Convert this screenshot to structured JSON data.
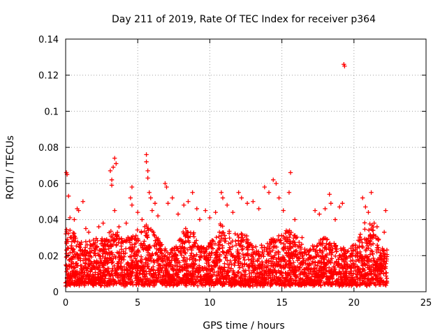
{
  "chart_data": {
    "type": "scatter",
    "title": "Day 211 of 2019, Rate Of TEC Index for receiver p364",
    "xlabel": "GPS time / hours",
    "ylabel": "ROTI / TECUs",
    "xlim": [
      0,
      25
    ],
    "ylim": [
      0,
      0.14
    ],
    "xticks": [
      0,
      5,
      10,
      15,
      20,
      25
    ],
    "xtick_labels": [
      "0",
      "5",
      "10",
      "15",
      "20",
      "25"
    ],
    "yticks": [
      0,
      0.02,
      0.04,
      0.06,
      0.08,
      0.1,
      0.12,
      0.14
    ],
    "ytick_labels": [
      "0",
      "0.02",
      "0.04",
      "0.06",
      "0.08",
      "0.1",
      "0.12",
      "0.14"
    ],
    "grid": true,
    "marker": "+",
    "color": "#ff0000",
    "dense_band": {
      "x_range": [
        0,
        22.3
      ],
      "typical_y_range": [
        0.004,
        0.03
      ]
    },
    "points": [
      [
        0.05,
        0.066
      ],
      [
        0.1,
        0.065
      ],
      [
        0.2,
        0.053
      ],
      [
        0.3,
        0.041
      ],
      [
        0.6,
        0.04
      ],
      [
        0.8,
        0.046
      ],
      [
        0.9,
        0.045
      ],
      [
        1.2,
        0.05
      ],
      [
        1.4,
        0.035
      ],
      [
        1.6,
        0.033
      ],
      [
        2.3,
        0.036
      ],
      [
        2.6,
        0.038
      ],
      [
        3.1,
        0.067
      ],
      [
        3.2,
        0.062
      ],
      [
        3.2,
        0.059
      ],
      [
        3.3,
        0.069
      ],
      [
        3.4,
        0.074
      ],
      [
        3.4,
        0.045
      ],
      [
        3.5,
        0.071
      ],
      [
        3.7,
        0.036
      ],
      [
        4.2,
        0.038
      ],
      [
        4.5,
        0.052
      ],
      [
        4.6,
        0.058
      ],
      [
        4.6,
        0.048
      ],
      [
        5.0,
        0.044
      ],
      [
        5.3,
        0.04
      ],
      [
        5.6,
        0.076
      ],
      [
        5.6,
        0.072
      ],
      [
        5.7,
        0.067
      ],
      [
        5.7,
        0.063
      ],
      [
        5.8,
        0.055
      ],
      [
        5.9,
        0.052
      ],
      [
        6.0,
        0.045
      ],
      [
        6.2,
        0.049
      ],
      [
        6.4,
        0.042
      ],
      [
        6.9,
        0.06
      ],
      [
        7.0,
        0.058
      ],
      [
        7.1,
        0.049
      ],
      [
        7.4,
        0.052
      ],
      [
        7.8,
        0.043
      ],
      [
        8.2,
        0.048
      ],
      [
        8.5,
        0.05
      ],
      [
        8.8,
        0.055
      ],
      [
        9.1,
        0.046
      ],
      [
        9.3,
        0.04
      ],
      [
        9.7,
        0.045
      ],
      [
        10.0,
        0.041
      ],
      [
        10.4,
        0.044
      ],
      [
        10.8,
        0.055
      ],
      [
        10.9,
        0.052
      ],
      [
        11.2,
        0.048
      ],
      [
        11.6,
        0.044
      ],
      [
        12.0,
        0.055
      ],
      [
        12.2,
        0.052
      ],
      [
        12.6,
        0.049
      ],
      [
        13.0,
        0.05
      ],
      [
        13.4,
        0.046
      ],
      [
        13.8,
        0.058
      ],
      [
        14.1,
        0.055
      ],
      [
        14.4,
        0.062
      ],
      [
        14.6,
        0.06
      ],
      [
        14.8,
        0.052
      ],
      [
        15.1,
        0.045
      ],
      [
        15.5,
        0.055
      ],
      [
        15.6,
        0.066
      ],
      [
        15.9,
        0.04
      ],
      [
        16.4,
        0.03
      ],
      [
        17.3,
        0.045
      ],
      [
        17.6,
        0.043
      ],
      [
        18.0,
        0.046
      ],
      [
        18.3,
        0.054
      ],
      [
        18.4,
        0.049
      ],
      [
        18.7,
        0.04
      ],
      [
        19.0,
        0.047
      ],
      [
        19.2,
        0.049
      ],
      [
        19.3,
        0.126
      ],
      [
        19.35,
        0.125
      ],
      [
        20.6,
        0.052
      ],
      [
        20.8,
        0.047
      ],
      [
        21.0,
        0.044
      ],
      [
        21.2,
        0.055
      ],
      [
        21.4,
        0.038
      ],
      [
        21.6,
        0.036
      ],
      [
        22.2,
        0.045
      ],
      [
        22.1,
        0.033
      ]
    ]
  }
}
